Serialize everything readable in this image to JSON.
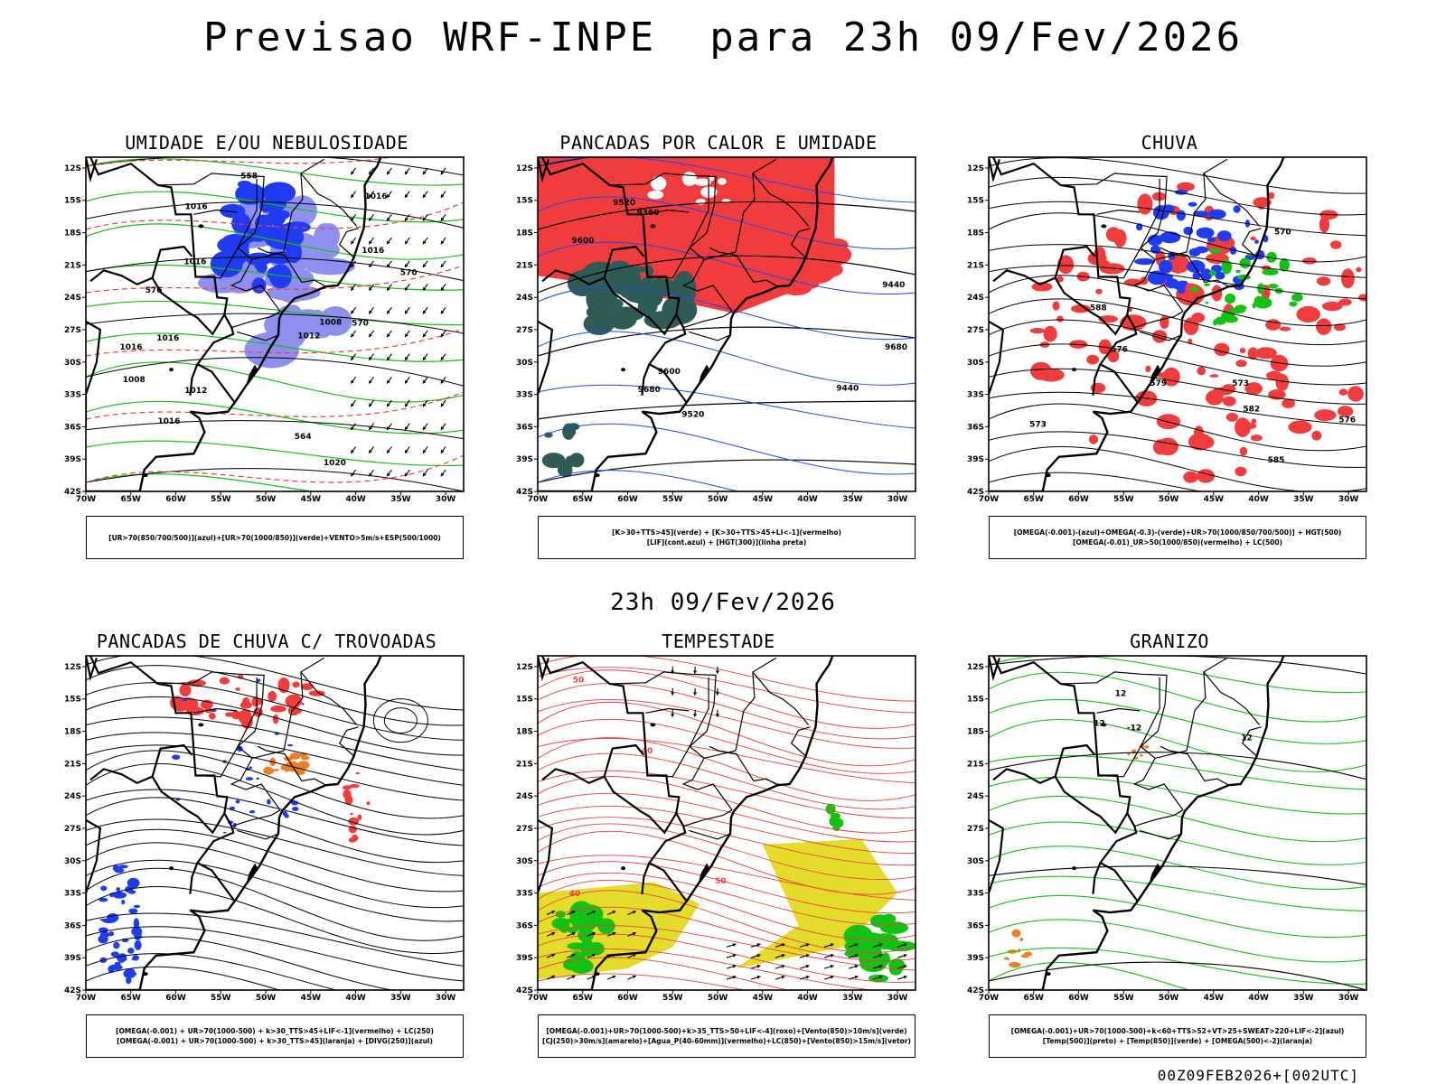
{
  "title": "Previsao WRF-INPE  para 23h 09/Fev/2026",
  "subtitle": "23h 09/Fev/2026",
  "footer": "00Z09FEB2026+[002UTC]",
  "axes": {
    "lat_ticks": [
      "12S",
      "15S",
      "18S",
      "21S",
      "24S",
      "27S",
      "30S",
      "33S",
      "36S",
      "39S",
      "42S"
    ],
    "lon_ticks": [
      "70W",
      "65W",
      "60W",
      "55W",
      "50W",
      "45W",
      "40W",
      "35W",
      "30W"
    ]
  },
  "colors": {
    "blue": "#1f3cf0",
    "light_blue": "#8f8ff0",
    "green": "#12c212",
    "red": "#f03c3c",
    "dark_teal": "#2f5b57",
    "orange": "#ee7e22",
    "yellow": "#e4dc2a",
    "black": "#000000"
  },
  "panels": [
    {
      "title": "UMIDADE E/OU NEBULOSIDADE",
      "legend": [
        "[UR>70(850/700/500)](azul)+[UR>70(1000/850)](verde)+VENTO>5m/s+ESP(500/1000)"
      ],
      "contour_labels": [
        "1012",
        "1016",
        "1016",
        "1016",
        "1008",
        "1008",
        "1016",
        "1020",
        "1016",
        "1016",
        "1012",
        "576",
        "570",
        "564",
        "558",
        "570",
        "1016"
      ],
      "shading": [
        "light_blue",
        "blue",
        "green"
      ],
      "contours": [
        "black",
        "red-dashed"
      ]
    },
    {
      "title": "PANCADAS POR CALOR E UMIDADE",
      "legend": [
        "[K>30+TTS>45](verde)  +  [K>30+TTS>45+LI<-1](vermelho)",
        "[LIF](cont.azul)  +  [HGT(300)](linha preta)"
      ],
      "contour_labels": [
        "9680",
        "9600",
        "9520",
        "9440",
        "9360",
        "9600",
        "9680",
        "9520",
        "9440"
      ],
      "shading": [
        "red",
        "dark_teal"
      ],
      "contours": [
        "black",
        "blue"
      ]
    },
    {
      "title": "CHUVA",
      "legend": [
        "[OMEGA(-0.001)-(azul)+OMEGA(-0.3)-(verde)+UR>70(1000/850/700/500)]  +  HGT(500)",
        "[OMEGA(-0.01)_UR>50(1000/850)(vermelho)  +  LC(500)"
      ],
      "contour_labels": [
        "588",
        "585",
        "582",
        "579",
        "576",
        "573",
        "570",
        "576",
        "573"
      ],
      "shading": [
        "red",
        "blue",
        "green"
      ],
      "contours": [
        "black"
      ]
    },
    {
      "title": "PANCADAS DE CHUVA C/ TROVOADAS",
      "legend": [
        "[OMEGA(-0.001)  +  UR>70(1000-500)  +  k>30_TTS>45+LIF<-1](vermelho)  +  LC(250)",
        "[OMEGA(-0.001)  +  UR>70(1000-500)  +  k>30_TTS>45](laranja)  +  [DIVG(250)](azul)"
      ],
      "contour_labels": [],
      "shading": [
        "red",
        "orange",
        "blue"
      ],
      "contours": [
        "black-streamlines"
      ]
    },
    {
      "title": "TEMPESTADE",
      "legend": [
        "[OMEGA(-0.001)+UR>70(1000-500)+k>35_TTS>50+LIF<-4](roxo)+[Vento(850)>10m/s](verde)",
        "[CJ(250)>30m/s](amarelo)+[Agua_P(40-60mm)](vermelho)+LC(850)+[Vento(850)>15m/s](vetor)"
      ],
      "contour_labels": [
        "40",
        "50",
        "40",
        "50"
      ],
      "shading": [
        "yellow",
        "green"
      ],
      "contours": [
        "red-streamlines",
        "black-vectors"
      ]
    },
    {
      "title": "GRANIZO",
      "legend": [
        "[OMEGA(-0.001)+UR>70(1000-500)+k<60+TTS>52+VT>25+SWEAT>220+LIF<-2](azul)",
        "[Temp(500)](preto)  +  [Temp(850)](verde)  +  [OMEGA(500)<-2](laranja)"
      ],
      "contour_labels": [
        "12",
        "12",
        "12",
        "-12"
      ],
      "shading": [
        "orange"
      ],
      "contours": [
        "black",
        "green"
      ]
    }
  ]
}
